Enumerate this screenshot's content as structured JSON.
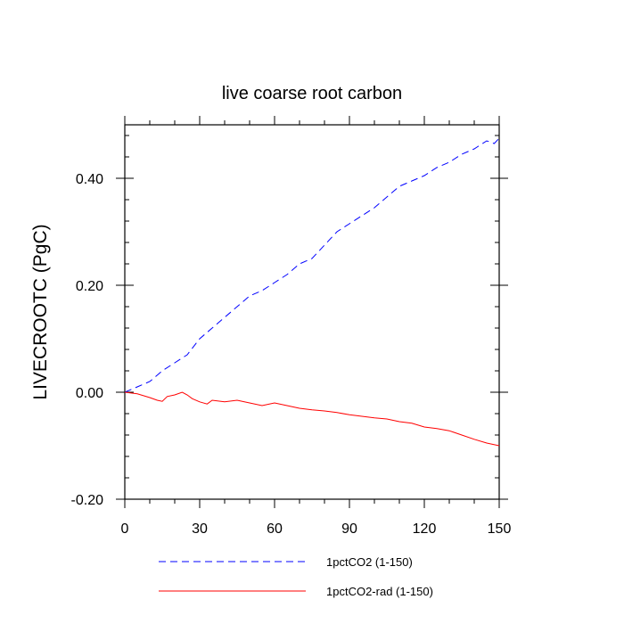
{
  "chart_data": {
    "type": "line",
    "title": "live coarse root carbon",
    "xlabel": "",
    "ylabel": "LIVECROOTC  (PgC)",
    "xlim": [
      0,
      150
    ],
    "ylim": [
      -0.2,
      0.5
    ],
    "x_ticks": [
      0,
      30,
      60,
      90,
      120,
      150
    ],
    "x_tick_labels": [
      "0",
      "30",
      "60",
      "90",
      "120",
      "150"
    ],
    "y_ticks": [
      -0.2,
      0.0,
      0.2,
      0.4
    ],
    "y_tick_labels": [
      "-0.20",
      "0.00",
      "0.20",
      "0.40"
    ],
    "legend_position": "bottom",
    "grid": false,
    "series": [
      {
        "name": "1pctCO2 (1-150)",
        "color": "#0000ff",
        "style": "dashed",
        "x": [
          0,
          5,
          10,
          15,
          20,
          25,
          30,
          35,
          40,
          45,
          50,
          55,
          60,
          65,
          70,
          75,
          80,
          85,
          90,
          95,
          100,
          105,
          110,
          115,
          120,
          125,
          130,
          135,
          140,
          145,
          148,
          150
        ],
        "y": [
          0.0,
          0.01,
          0.02,
          0.04,
          0.055,
          0.07,
          0.1,
          0.12,
          0.14,
          0.16,
          0.18,
          0.19,
          0.205,
          0.22,
          0.24,
          0.25,
          0.275,
          0.3,
          0.315,
          0.33,
          0.345,
          0.365,
          0.385,
          0.395,
          0.405,
          0.42,
          0.43,
          0.445,
          0.455,
          0.47,
          0.465,
          0.475
        ]
      },
      {
        "name": "1pctCO2-rad (1-150)",
        "color": "#ff0000",
        "style": "solid",
        "x": [
          0,
          5,
          10,
          13,
          15,
          17,
          20,
          23,
          25,
          27,
          30,
          33,
          35,
          40,
          45,
          50,
          55,
          60,
          65,
          70,
          75,
          80,
          85,
          90,
          95,
          100,
          105,
          110,
          115,
          120,
          125,
          130,
          135,
          140,
          145,
          150
        ],
        "y": [
          0.0,
          -0.003,
          -0.01,
          -0.015,
          -0.017,
          -0.008,
          -0.005,
          0.0,
          -0.005,
          -0.012,
          -0.018,
          -0.022,
          -0.015,
          -0.018,
          -0.015,
          -0.02,
          -0.025,
          -0.02,
          -0.025,
          -0.03,
          -0.033,
          -0.035,
          -0.038,
          -0.042,
          -0.045,
          -0.048,
          -0.05,
          -0.055,
          -0.058,
          -0.065,
          -0.068,
          -0.072,
          -0.08,
          -0.088,
          -0.095,
          -0.1
        ]
      }
    ]
  }
}
